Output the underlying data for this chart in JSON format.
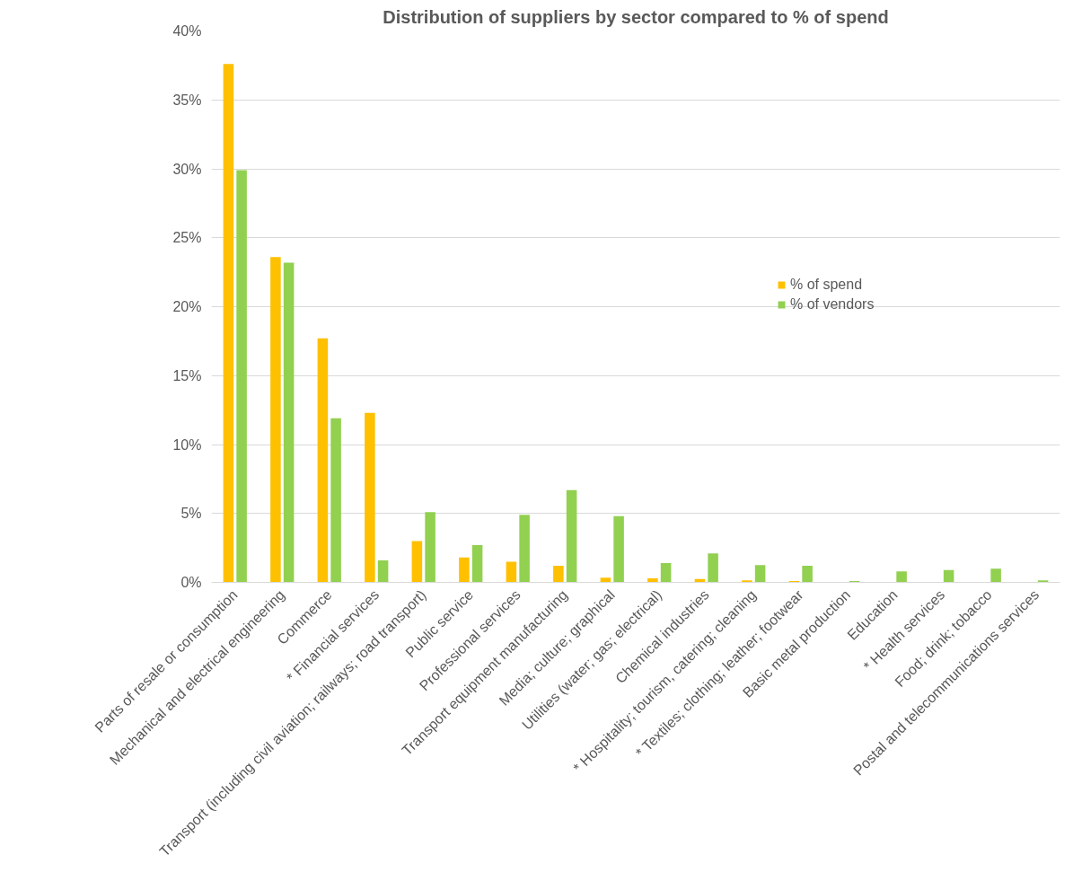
{
  "chart_data": {
    "type": "bar",
    "title": "Distribution of suppliers by sector compared to % of spend",
    "categories": [
      "Parts of resale or consumption",
      "Mechanical and electrical engineering",
      "Commerce",
      "* Financial services",
      "Transport (including civil aviation; railways; road transport)",
      "Public service",
      "Professional services",
      "Transport equipment manufacturing",
      "Media; culture; graphical",
      "Utilities (water; gas; electrical)",
      "Chemical industries",
      "* Hospitality; tourism, catering; cleaning",
      "* Textiles; clothing; leather; footwear",
      "Basic metal production",
      "Education",
      "* Health services",
      "Food; drink; tobacco",
      "Postal and telecommunications services"
    ],
    "series": [
      {
        "name": "% of spend",
        "color": "#ffc000",
        "values": [
          37.6,
          23.6,
          17.7,
          12.3,
          3.0,
          1.8,
          1.5,
          1.2,
          0.35,
          0.3,
          0.25,
          0.15,
          0.1,
          0,
          0,
          0,
          0,
          0
        ]
      },
      {
        "name": "% of vendors",
        "color": "#92d050",
        "values": [
          29.9,
          23.2,
          11.9,
          1.6,
          5.1,
          2.7,
          4.9,
          6.7,
          4.8,
          1.4,
          2.1,
          1.25,
          1.2,
          0.1,
          0.8,
          0.9,
          1.0,
          0.15
        ]
      }
    ],
    "ylim": [
      0,
      40
    ],
    "yticks": [
      {
        "value": 0,
        "label": "0%"
      },
      {
        "value": 5,
        "label": "5%"
      },
      {
        "value": 10,
        "label": "10%"
      },
      {
        "value": 15,
        "label": "15%"
      },
      {
        "value": 20,
        "label": "20%"
      },
      {
        "value": 25,
        "label": "25%"
      },
      {
        "value": 30,
        "label": "30%"
      },
      {
        "value": 35,
        "label": "35%"
      },
      {
        "value": 40,
        "label": "40%"
      }
    ],
    "grid": "y",
    "legend": "right"
  }
}
